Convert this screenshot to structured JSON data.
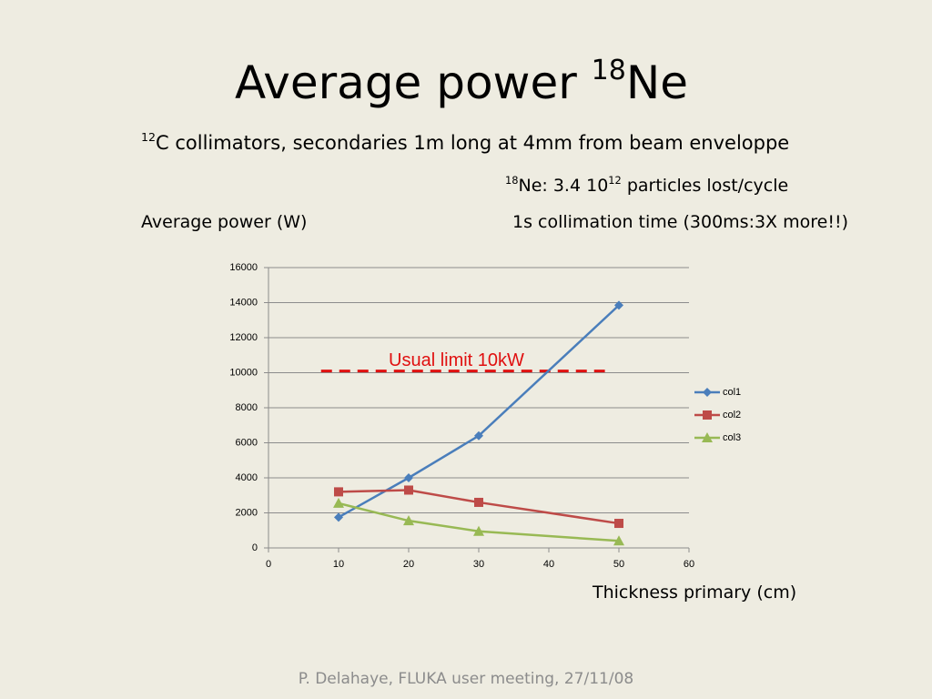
{
  "slide": {
    "title": {
      "main": "Average power ",
      "sup": "18",
      "end": "Ne"
    },
    "line1": {
      "sup": "12",
      "text": "C collimators, secondaries 1m long at 4mm from beam enveloppe"
    },
    "line2": {
      "sup1": "18",
      "text1": "Ne: 3.4 10",
      "sup2": "12",
      "text2": " particles lost/cycle"
    },
    "line3": "1s collimation time (300ms:3X more!!)",
    "footer": "P. Delahaye, FLUKA user meeting, 27/11/08"
  },
  "chart_data": {
    "type": "line",
    "y_label": "Average power (W)",
    "x_label": "Thickness primary (cm)",
    "x": [
      10,
      20,
      30,
      50
    ],
    "series": [
      {
        "name": "col1",
        "color": "#4a7ebb",
        "marker": "diamond",
        "values": [
          1750,
          4000,
          6400,
          13850
        ]
      },
      {
        "name": "col2",
        "color": "#be4b48",
        "marker": "square",
        "values": [
          3200,
          3300,
          2600,
          1400
        ]
      },
      {
        "name": "col3",
        "color": "#98b954",
        "marker": "triangle",
        "values": [
          2550,
          1550,
          950,
          400
        ]
      }
    ],
    "xlim": [
      0,
      60
    ],
    "xticks": [
      0,
      10,
      20,
      30,
      40,
      50,
      60
    ],
    "ylim": [
      0,
      16000
    ],
    "yticks": [
      0,
      2000,
      4000,
      6000,
      8000,
      10000,
      12000,
      14000,
      16000
    ],
    "grid": true,
    "legend": "right",
    "reference_line": {
      "label": "Usual limit 10kW",
      "value": 10100,
      "x": [
        7.5,
        48
      ],
      "color": "#e01010"
    }
  }
}
